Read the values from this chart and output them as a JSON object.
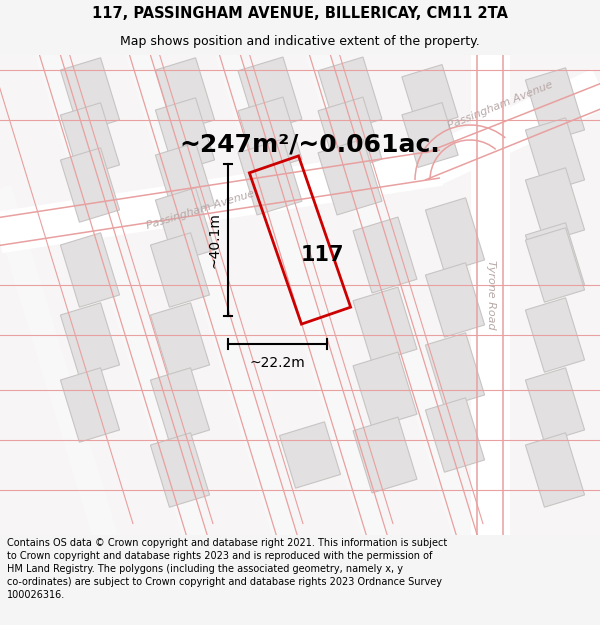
{
  "title_line1": "117, PASSINGHAM AVENUE, BILLERICAY, CM11 2TA",
  "title_line2": "Map shows position and indicative extent of the property.",
  "area_text": "~247m²/~0.061ac.",
  "label_117": "117",
  "dim_height": "~40.1m",
  "dim_width": "~22.2m",
  "footer_text": "Contains OS data © Crown copyright and database right 2021. This information is subject to Crown copyright and database rights 2023 and is reproduced with the permission of HM Land Registry. The polygons (including the associated geometry, namely x, y co-ordinates) are subject to Crown copyright and database rights 2023 Ordnance Survey 100026316.",
  "bg_color": "#f5f5f5",
  "map_bg": "#f8f7f7",
  "block_face": "#e2e0e0",
  "block_edge": "#c8c4c4",
  "road_line_color": "#e8a0a0",
  "road_label_color": "#b8a8a8",
  "plot_color": "#cc0000",
  "dim_color": "#000000",
  "title_color": "#000000",
  "area_color": "#000000",
  "footer_color": "#000000",
  "title_fs": 10.5,
  "subtitle_fs": 9,
  "area_fs": 18,
  "label_fs": 15,
  "dim_fs": 10,
  "road_label_fs": 8,
  "footer_fs": 7
}
